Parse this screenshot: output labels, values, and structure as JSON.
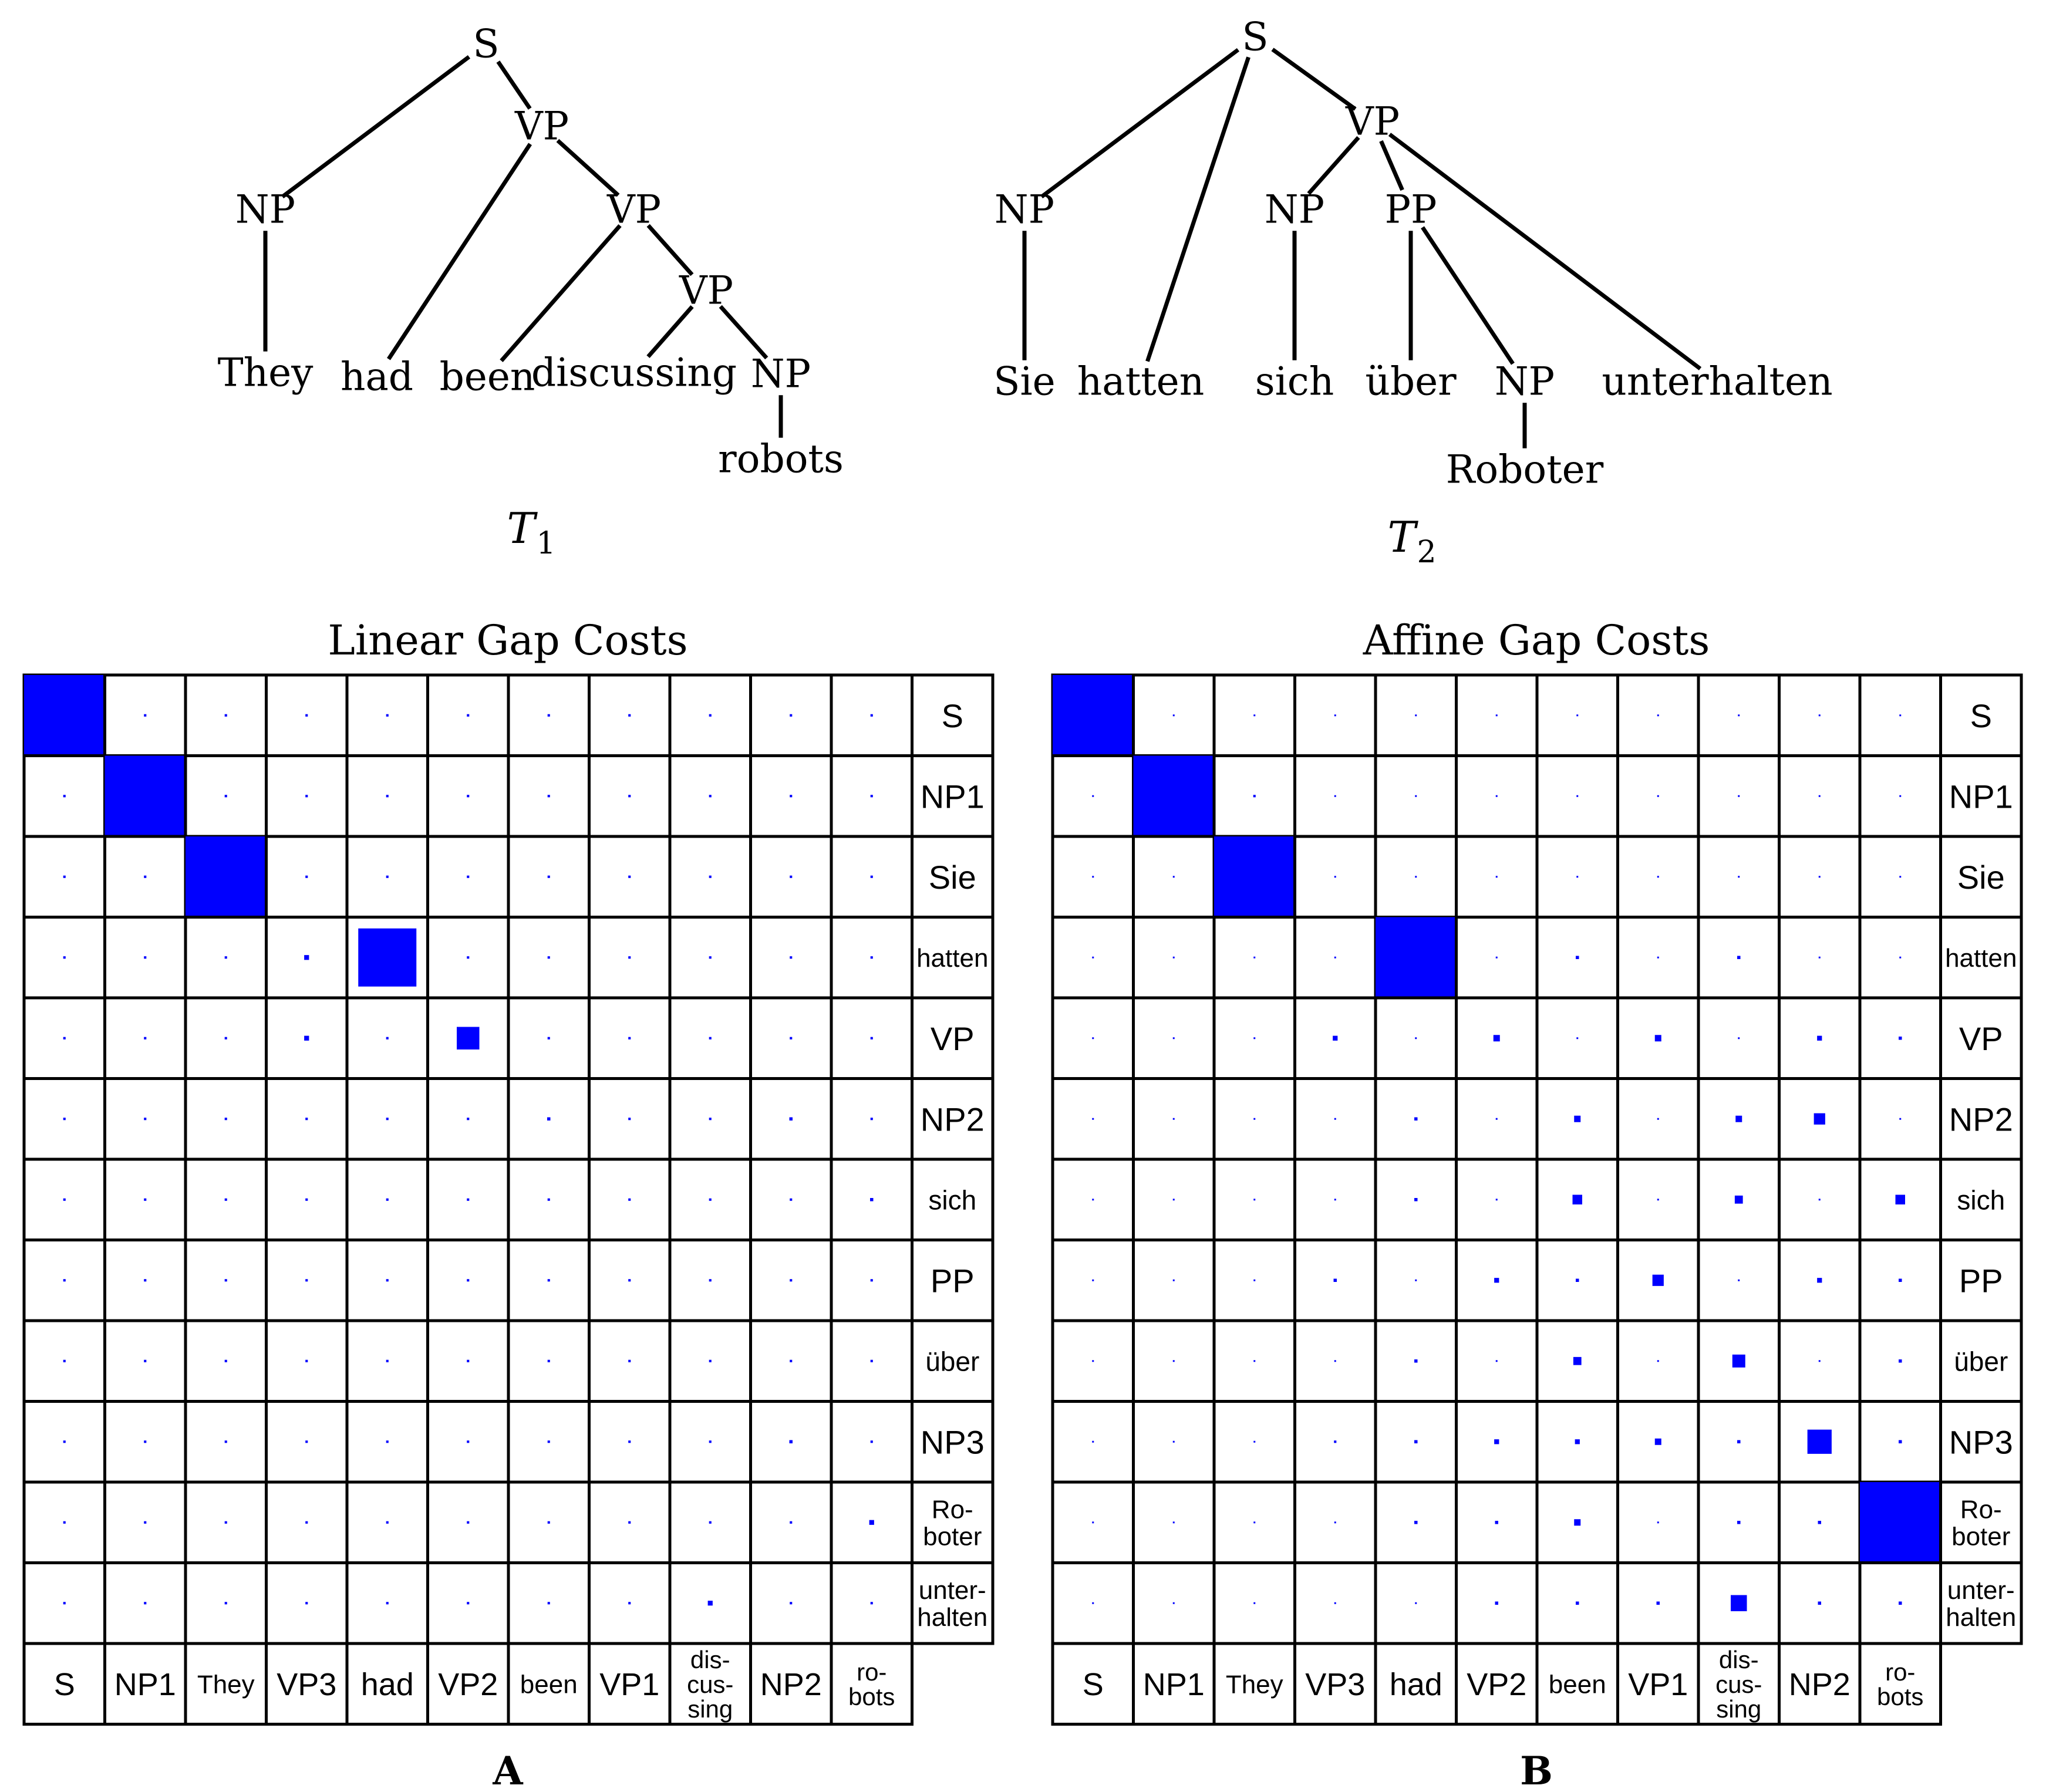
{
  "tree1": {
    "caption": "T",
    "caption_sub": "1",
    "nodes": [
      {
        "id": "S",
        "label": "S"
      },
      {
        "id": "NP",
        "label": "NP"
      },
      {
        "id": "VP_a",
        "label": "VP"
      },
      {
        "id": "VP_b",
        "label": "VP"
      },
      {
        "id": "VP_c",
        "label": "VP"
      },
      {
        "id": "NP_obj",
        "label": "NP"
      },
      {
        "id": "They",
        "label": "They"
      },
      {
        "id": "had",
        "label": "had"
      },
      {
        "id": "been",
        "label": "been"
      },
      {
        "id": "discussing",
        "label": "discussing"
      },
      {
        "id": "robots",
        "label": "robots"
      }
    ],
    "edges": [
      [
        "S",
        "NP"
      ],
      [
        "S",
        "VP_a"
      ],
      [
        "NP",
        "They"
      ],
      [
        "VP_a",
        "had"
      ],
      [
        "VP_a",
        "VP_b"
      ],
      [
        "VP_b",
        "been"
      ],
      [
        "VP_b",
        "VP_c"
      ],
      [
        "VP_c",
        "discussing"
      ],
      [
        "VP_c",
        "NP_obj"
      ],
      [
        "NP_obj",
        "robots"
      ]
    ]
  },
  "tree2": {
    "caption": "T",
    "caption_sub": "2",
    "nodes": [
      {
        "id": "S",
        "label": "S"
      },
      {
        "id": "NP",
        "label": "NP"
      },
      {
        "id": "VP",
        "label": "VP"
      },
      {
        "id": "NP2",
        "label": "NP"
      },
      {
        "id": "PP",
        "label": "PP"
      },
      {
        "id": "NP3",
        "label": "NP"
      },
      {
        "id": "Sie",
        "label": "Sie"
      },
      {
        "id": "hatten",
        "label": "hatten"
      },
      {
        "id": "sich",
        "label": "sich"
      },
      {
        "id": "ueber",
        "label": "über"
      },
      {
        "id": "Roboter",
        "label": "Roboter"
      },
      {
        "id": "unterhalten",
        "label": "unterhalten"
      }
    ],
    "edges": [
      [
        "S",
        "NP"
      ],
      [
        "S",
        "hatten"
      ],
      [
        "S",
        "VP"
      ],
      [
        "NP",
        "Sie"
      ],
      [
        "VP",
        "NP2"
      ],
      [
        "VP",
        "PP"
      ],
      [
        "VP",
        "unterhalten"
      ],
      [
        "NP2",
        "sich"
      ],
      [
        "PP",
        "ueber"
      ],
      [
        "PP",
        "NP3"
      ],
      [
        "NP3",
        "Roboter"
      ]
    ]
  },
  "matrices": {
    "row_labels": [
      [
        "S"
      ],
      [
        "NP1"
      ],
      [
        "Sie"
      ],
      [
        "hatten"
      ],
      [
        "VP"
      ],
      [
        "NP2"
      ],
      [
        "sich"
      ],
      [
        "PP"
      ],
      [
        "über"
      ],
      [
        "NP3"
      ],
      [
        "Ro-",
        "boter"
      ],
      [
        "unter-",
        "halten"
      ]
    ],
    "col_labels": [
      [
        "S"
      ],
      [
        "NP1"
      ],
      [
        "They"
      ],
      [
        "VP3"
      ],
      [
        "had"
      ],
      [
        "VP2"
      ],
      [
        "been"
      ],
      [
        "VP1"
      ],
      [
        "dis-",
        "cus-",
        "sing"
      ],
      [
        "NP2"
      ],
      [
        "ro-",
        "bots"
      ]
    ],
    "colors": {
      "mark": "#0000ff",
      "grid": "#000000",
      "background": "#ffffff"
    },
    "panels": [
      {
        "title": "Linear Gap Costs",
        "letter": "A",
        "values": [
          [
            1.0,
            0.03,
            0.03,
            0.03,
            0.03,
            0.03,
            0.03,
            0.03,
            0.03,
            0.03,
            0.03
          ],
          [
            0.03,
            1.0,
            0.03,
            0.03,
            0.03,
            0.03,
            0.03,
            0.03,
            0.03,
            0.03,
            0.03
          ],
          [
            0.03,
            0.03,
            1.0,
            0.03,
            0.03,
            0.03,
            0.03,
            0.03,
            0.03,
            0.03,
            0.03
          ],
          [
            0.03,
            0.03,
            0.03,
            0.06,
            0.72,
            0.03,
            0.03,
            0.03,
            0.03,
            0.03,
            0.03
          ],
          [
            0.03,
            0.03,
            0.03,
            0.06,
            0.03,
            0.28,
            0.03,
            0.03,
            0.03,
            0.03,
            0.03
          ],
          [
            0.03,
            0.03,
            0.03,
            0.03,
            0.03,
            0.03,
            0.04,
            0.03,
            0.03,
            0.04,
            0.03
          ],
          [
            0.03,
            0.03,
            0.03,
            0.03,
            0.03,
            0.03,
            0.03,
            0.03,
            0.03,
            0.03,
            0.04
          ],
          [
            0.03,
            0.03,
            0.03,
            0.03,
            0.03,
            0.03,
            0.03,
            0.03,
            0.03,
            0.03,
            0.03
          ],
          [
            0.03,
            0.03,
            0.03,
            0.03,
            0.03,
            0.03,
            0.03,
            0.03,
            0.03,
            0.03,
            0.03
          ],
          [
            0.03,
            0.03,
            0.03,
            0.03,
            0.03,
            0.03,
            0.03,
            0.03,
            0.03,
            0.04,
            0.03
          ],
          [
            0.03,
            0.03,
            0.03,
            0.03,
            0.03,
            0.03,
            0.03,
            0.03,
            0.03,
            0.03,
            0.06
          ],
          [
            0.03,
            0.03,
            0.03,
            0.03,
            0.03,
            0.03,
            0.03,
            0.03,
            0.06,
            0.03,
            0.03
          ]
        ]
      },
      {
        "title": "Affine Gap Costs",
        "letter": "B",
        "values": [
          [
            1.0,
            0.02,
            0.02,
            0.02,
            0.02,
            0.02,
            0.02,
            0.02,
            0.02,
            0.02,
            0.02
          ],
          [
            0.02,
            1.0,
            0.03,
            0.02,
            0.02,
            0.02,
            0.02,
            0.02,
            0.02,
            0.02,
            0.02
          ],
          [
            0.02,
            0.02,
            1.0,
            0.02,
            0.02,
            0.02,
            0.02,
            0.02,
            0.02,
            0.02,
            0.02
          ],
          [
            0.02,
            0.02,
            0.02,
            0.02,
            1.0,
            0.02,
            0.04,
            0.02,
            0.04,
            0.02,
            0.02
          ],
          [
            0.02,
            0.02,
            0.02,
            0.06,
            0.02,
            0.08,
            0.02,
            0.08,
            0.02,
            0.06,
            0.04
          ],
          [
            0.02,
            0.02,
            0.02,
            0.02,
            0.04,
            0.02,
            0.08,
            0.02,
            0.08,
            0.14,
            0.02
          ],
          [
            0.02,
            0.02,
            0.02,
            0.02,
            0.04,
            0.02,
            0.12,
            0.02,
            0.1,
            0.02,
            0.12
          ],
          [
            0.02,
            0.02,
            0.02,
            0.04,
            0.02,
            0.06,
            0.04,
            0.14,
            0.02,
            0.06,
            0.04
          ],
          [
            0.02,
            0.02,
            0.02,
            0.02,
            0.04,
            0.02,
            0.1,
            0.02,
            0.16,
            0.02,
            0.04
          ],
          [
            0.02,
            0.02,
            0.02,
            0.03,
            0.04,
            0.06,
            0.06,
            0.08,
            0.04,
            0.3,
            0.04
          ],
          [
            0.02,
            0.02,
            0.02,
            0.02,
            0.04,
            0.04,
            0.08,
            0.02,
            0.04,
            0.04,
            1.0
          ],
          [
            0.02,
            0.02,
            0.02,
            0.02,
            0.02,
            0.04,
            0.04,
            0.04,
            0.2,
            0.04,
            0.04
          ]
        ]
      }
    ]
  }
}
